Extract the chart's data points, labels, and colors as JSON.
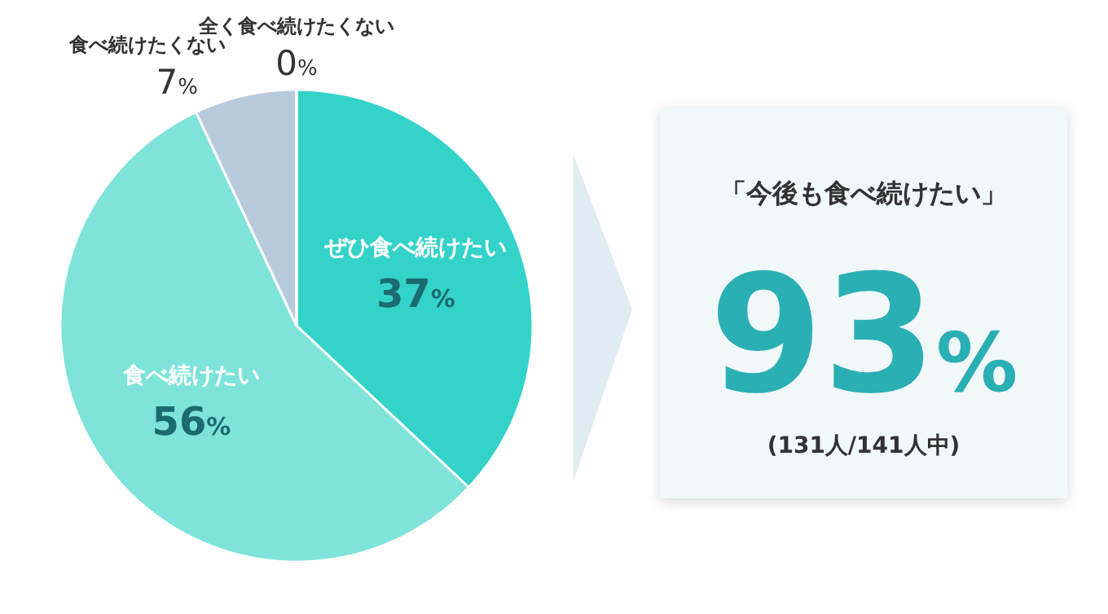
{
  "chart_data": [
    {
      "type": "pie",
      "categories": [
        "ぜひ食べ続けたい",
        "食べ続けたい",
        "食べ続けたくない",
        "全く食べ続けたくない"
      ],
      "values": [
        37,
        56,
        7,
        0
      ],
      "colors": [
        "#33d3c9",
        "#7ee3d9",
        "#b8cbdd",
        "#b8cbdd"
      ],
      "value_labels": [
        "37%",
        "56%",
        "7%",
        "0%"
      ]
    },
    {
      "type": "other",
      "annotations": [
        "「今後も食べ続けたい」",
        "93%",
        "(131人/141人中)"
      ]
    }
  ]
}
